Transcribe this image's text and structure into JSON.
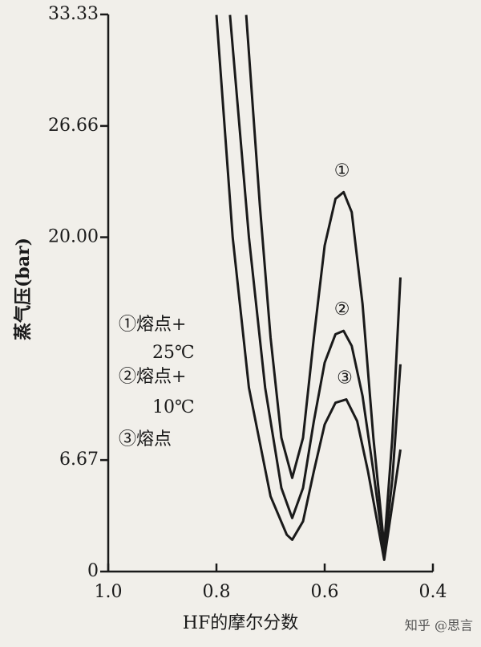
{
  "chart_data": {
    "type": "line",
    "x_label": "HF的摩尔分数",
    "y_label": "蒸气压(bar)",
    "xlim": [
      1.0,
      0.4
    ],
    "ylim": [
      0,
      33.33
    ],
    "xticks": [
      {
        "value": 1.0,
        "label": "1.0"
      },
      0.8,
      0.6,
      0.4
    ],
    "yticks": [
      0,
      6.67,
      {
        "value": 20,
        "label": "20.00"
      },
      26.66,
      33.33
    ],
    "series": [
      {
        "name": "①",
        "color": "#1a1a1a",
        "x": [
          0.745,
          0.72,
          0.7,
          0.68,
          0.66,
          0.64,
          0.62,
          0.6,
          0.58,
          0.565,
          0.55,
          0.53,
          0.51,
          0.49,
          0.475,
          0.46
        ],
        "values": [
          33.3,
          22,
          14,
          8,
          5.6,
          8,
          14,
          19.5,
          22.3,
          22.7,
          21.5,
          16,
          8,
          1.5,
          8,
          17.6
        ]
      },
      {
        "name": "②",
        "color": "#1a1a1a",
        "x": [
          0.775,
          0.74,
          0.71,
          0.68,
          0.66,
          0.64,
          0.62,
          0.6,
          0.58,
          0.565,
          0.55,
          0.53,
          0.51,
          0.49,
          0.475,
          0.46
        ],
        "values": [
          33.3,
          20,
          11,
          5,
          3.2,
          5,
          9,
          12.5,
          14.2,
          14.4,
          13.5,
          10.5,
          6,
          1.1,
          5.5,
          12.4
        ]
      },
      {
        "name": "③",
        "color": "#1a1a1a",
        "x": [
          0.8,
          0.77,
          0.74,
          0.7,
          0.67,
          0.66,
          0.64,
          0.62,
          0.6,
          0.58,
          0.56,
          0.54,
          0.52,
          0.49,
          0.475,
          0.46
        ],
        "values": [
          33.3,
          20,
          11,
          4.5,
          2.2,
          1.9,
          3,
          6,
          8.8,
          10.1,
          10.3,
          9,
          6,
          0.7,
          4,
          7.3
        ]
      }
    ],
    "legend_lines": [
      "①熔点+",
      "25℃",
      "②熔点+",
      "10℃",
      "③熔点"
    ],
    "watermark": "知乎 @思言"
  }
}
